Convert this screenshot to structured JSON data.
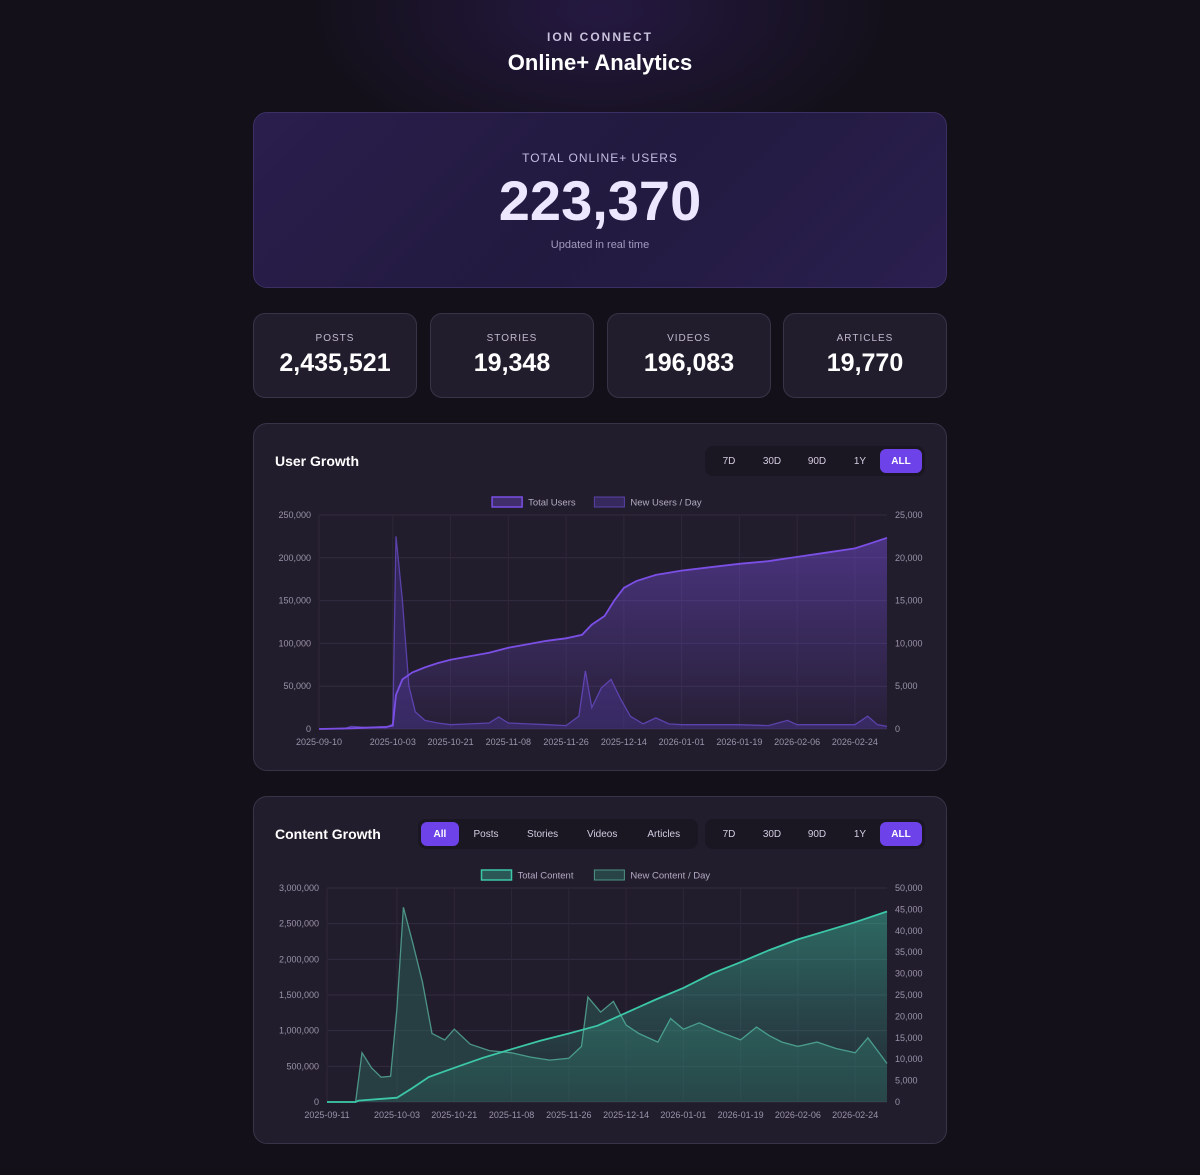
{
  "header": {
    "brand": "ION CONNECT",
    "title": "Online+ Analytics"
  },
  "hero": {
    "label": "TOTAL ONLINE+ USERS",
    "value": "223,370",
    "subtitle": "Updated in real time"
  },
  "stats": [
    {
      "label": "POSTS",
      "value": "2,435,521"
    },
    {
      "label": "STORIES",
      "value": "19,348"
    },
    {
      "label": "VIDEOS",
      "value": "196,083"
    },
    {
      "label": "ARTICLES",
      "value": "19,770"
    }
  ],
  "user_growth": {
    "title": "User Growth",
    "ranges": [
      "7D",
      "30D",
      "90D",
      "1Y",
      "ALL"
    ],
    "active_range": "ALL"
  },
  "content_growth": {
    "title": "Content Growth",
    "filters": [
      "All",
      "Posts",
      "Stories",
      "Videos",
      "Articles"
    ],
    "active_filter": "All",
    "ranges": [
      "7D",
      "30D",
      "90D",
      "1Y",
      "ALL"
    ],
    "active_range": "ALL"
  },
  "colors": {
    "accent": "#6d42e8",
    "user_line": "#7b4fe6",
    "user_daily": "#4a3590",
    "content_line": "#3cc7a8",
    "content_daily": "#2f6b60"
  },
  "chart_data": [
    {
      "type": "line",
      "legend": [
        "Total Users",
        "New Users / Day"
      ],
      "legend_position": "top",
      "x_ticks": [
        "2025-09-10",
        "2025-10-03",
        "2025-10-21",
        "2025-11-08",
        "2025-11-26",
        "2025-12-14",
        "2026-01-01",
        "2026-01-19",
        "2026-02-06",
        "2026-02-24"
      ],
      "y_left": {
        "min": 0,
        "max": 250000,
        "ticks": [
          "0",
          "50,000",
          "100,000",
          "150,000",
          "200,000",
          "250,000"
        ]
      },
      "y_right": {
        "min": 0,
        "max": 25000,
        "ticks": [
          "0",
          "5,000",
          "10,000",
          "15,000",
          "20,000",
          "25,000"
        ]
      },
      "x_range": [
        "2025-09-10",
        "2026-03-06"
      ],
      "grid": true,
      "series": [
        {
          "name": "Total Users",
          "axis": "left",
          "points": [
            [
              "2025-09-10",
              0
            ],
            [
              "2025-09-20",
              800
            ],
            [
              "2025-10-01",
              2500
            ],
            [
              "2025-10-03",
              4000
            ],
            [
              "2025-10-04",
              40000
            ],
            [
              "2025-10-06",
              58000
            ],
            [
              "2025-10-09",
              66000
            ],
            [
              "2025-10-13",
              72000
            ],
            [
              "2025-10-17",
              77000
            ],
            [
              "2025-10-21",
              81000
            ],
            [
              "2025-10-27",
              85000
            ],
            [
              "2025-11-02",
              89000
            ],
            [
              "2025-11-08",
              95000
            ],
            [
              "2025-11-14",
              99000
            ],
            [
              "2025-11-20",
              103000
            ],
            [
              "2025-11-26",
              106000
            ],
            [
              "2025-12-01",
              110000
            ],
            [
              "2025-12-04",
              122000
            ],
            [
              "2025-12-08",
              132000
            ],
            [
              "2025-12-11",
              150000
            ],
            [
              "2025-12-14",
              165000
            ],
            [
              "2025-12-18",
              173000
            ],
            [
              "2025-12-24",
              180000
            ],
            [
              "2026-01-01",
              185000
            ],
            [
              "2026-01-10",
              189000
            ],
            [
              "2026-01-19",
              193000
            ],
            [
              "2026-01-28",
              196000
            ],
            [
              "2026-02-06",
              201000
            ],
            [
              "2026-02-15",
              206000
            ],
            [
              "2026-02-24",
              211000
            ],
            [
              "2026-03-01",
              217000
            ],
            [
              "2026-03-06",
              223370
            ]
          ]
        },
        {
          "name": "New Users / Day",
          "axis": "right",
          "points": [
            [
              "2025-09-10",
              0
            ],
            [
              "2025-09-18",
              50
            ],
            [
              "2025-09-20",
              300
            ],
            [
              "2025-09-24",
              200
            ],
            [
              "2025-10-01",
              150
            ],
            [
              "2025-10-03",
              600
            ],
            [
              "2025-10-04",
              22500
            ],
            [
              "2025-10-06",
              15000
            ],
            [
              "2025-10-08",
              5000
            ],
            [
              "2025-10-10",
              2000
            ],
            [
              "2025-10-13",
              1000
            ],
            [
              "2025-10-17",
              700
            ],
            [
              "2025-10-21",
              500
            ],
            [
              "2025-10-27",
              600
            ],
            [
              "2025-11-02",
              700
            ],
            [
              "2025-11-05",
              1400
            ],
            [
              "2025-11-08",
              700
            ],
            [
              "2025-11-14",
              600
            ],
            [
              "2025-11-20",
              500
            ],
            [
              "2025-11-26",
              400
            ],
            [
              "2025-11-30",
              1500
            ],
            [
              "2025-12-02",
              6800
            ],
            [
              "2025-12-04",
              2500
            ],
            [
              "2025-12-07",
              4800
            ],
            [
              "2025-12-10",
              5800
            ],
            [
              "2025-12-13",
              3500
            ],
            [
              "2025-12-16",
              1500
            ],
            [
              "2025-12-20",
              600
            ],
            [
              "2025-12-24",
              1300
            ],
            [
              "2025-12-28",
              600
            ],
            [
              "2026-01-01",
              500
            ],
            [
              "2026-01-10",
              500
            ],
            [
              "2026-01-19",
              500
            ],
            [
              "2026-01-28",
              400
            ],
            [
              "2026-02-03",
              1000
            ],
            [
              "2026-02-06",
              500
            ],
            [
              "2026-02-15",
              500
            ],
            [
              "2026-02-24",
              500
            ],
            [
              "2026-02-28",
              1500
            ],
            [
              "2026-03-03",
              500
            ],
            [
              "2026-03-06",
              300
            ]
          ]
        }
      ]
    },
    {
      "type": "line",
      "legend": [
        "Total Content",
        "New Content / Day"
      ],
      "legend_position": "top",
      "x_ticks": [
        "2025-09-11",
        "2025-10-03",
        "2025-10-21",
        "2025-11-08",
        "2025-11-26",
        "2025-12-14",
        "2026-01-01",
        "2026-01-19",
        "2026-02-06",
        "2026-02-24"
      ],
      "y_left": {
        "min": 0,
        "max": 3000000,
        "ticks": [
          "0",
          "500,000",
          "1,000,000",
          "1,500,000",
          "2,000,000",
          "2,500,000",
          "3,000,000"
        ]
      },
      "y_right": {
        "min": 0,
        "max": 50000,
        "ticks": [
          "0",
          "5,000",
          "10,000",
          "15,000",
          "20,000",
          "25,000",
          "30,000",
          "35,000",
          "40,000",
          "45,000",
          "50,000"
        ]
      },
      "x_range": [
        "2025-09-11",
        "2026-03-06"
      ],
      "grid": true,
      "series": [
        {
          "name": "Total Content",
          "axis": "left",
          "points": [
            [
              "2025-09-11",
              0
            ],
            [
              "2025-09-20",
              0
            ],
            [
              "2025-09-21",
              20000
            ],
            [
              "2025-10-03",
              60000
            ],
            [
              "2025-10-08",
              200000
            ],
            [
              "2025-10-13",
              350000
            ],
            [
              "2025-10-21",
              480000
            ],
            [
              "2025-10-30",
              620000
            ],
            [
              "2025-11-08",
              740000
            ],
            [
              "2025-11-17",
              860000
            ],
            [
              "2025-11-26",
              960000
            ],
            [
              "2025-12-05",
              1070000
            ],
            [
              "2025-12-14",
              1250000
            ],
            [
              "2025-12-23",
              1430000
            ],
            [
              "2026-01-01",
              1600000
            ],
            [
              "2026-01-10",
              1800000
            ],
            [
              "2026-01-19",
              1960000
            ],
            [
              "2026-01-28",
              2130000
            ],
            [
              "2026-02-06",
              2280000
            ],
            [
              "2026-02-15",
              2400000
            ],
            [
              "2026-02-24",
              2520000
            ],
            [
              "2026-03-06",
              2670000
            ]
          ]
        },
        {
          "name": "New Content / Day",
          "axis": "right",
          "points": [
            [
              "2025-09-11",
              0
            ],
            [
              "2025-09-20",
              0
            ],
            [
              "2025-09-22",
              11500
            ],
            [
              "2025-09-25",
              8000
            ],
            [
              "2025-09-28",
              5800
            ],
            [
              "2025-10-01",
              6000
            ],
            [
              "2025-10-03",
              22000
            ],
            [
              "2025-10-05",
              45500
            ],
            [
              "2025-10-08",
              37000
            ],
            [
              "2025-10-11",
              28000
            ],
            [
              "2025-10-14",
              16000
            ],
            [
              "2025-10-18",
              14500
            ],
            [
              "2025-10-21",
              17000
            ],
            [
              "2025-10-26",
              13500
            ],
            [
              "2025-11-01",
              12000
            ],
            [
              "2025-11-08",
              11500
            ],
            [
              "2025-11-14",
              10500
            ],
            [
              "2025-11-20",
              9800
            ],
            [
              "2025-11-26",
              10200
            ],
            [
              "2025-11-30",
              13000
            ],
            [
              "2025-12-02",
              24500
            ],
            [
              "2025-12-06",
              21000
            ],
            [
              "2025-12-10",
              23500
            ],
            [
              "2025-12-14",
              18000
            ],
            [
              "2025-12-18",
              16000
            ],
            [
              "2025-12-24",
              14000
            ],
            [
              "2025-12-28",
              19500
            ],
            [
              "2026-01-01",
              17000
            ],
            [
              "2026-01-06",
              18500
            ],
            [
              "2026-01-12",
              16500
            ],
            [
              "2026-01-19",
              14500
            ],
            [
              "2026-01-24",
              17500
            ],
            [
              "2026-01-28",
              15500
            ],
            [
              "2026-02-01",
              14000
            ],
            [
              "2026-02-06",
              13000
            ],
            [
              "2026-02-12",
              14000
            ],
            [
              "2026-02-18",
              12500
            ],
            [
              "2026-02-24",
              11500
            ],
            [
              "2026-02-28",
              15000
            ],
            [
              "2026-03-03",
              12000
            ],
            [
              "2026-03-06",
              9000
            ]
          ]
        }
      ]
    }
  ]
}
